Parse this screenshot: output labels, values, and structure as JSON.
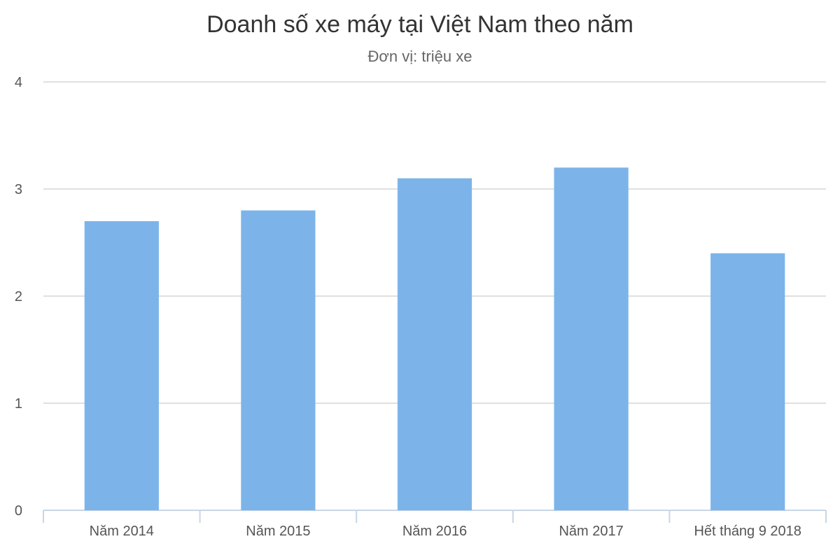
{
  "chart_data": {
    "type": "bar",
    "title": "Doanh số xe máy tại Việt Nam theo năm",
    "subtitle": "Đơn vị: triệu xe",
    "categories": [
      "Năm 2014",
      "Năm 2015",
      "Năm 2016",
      "Năm 2017",
      "Hết tháng 9 2018"
    ],
    "values": [
      2.7,
      2.8,
      3.1,
      3.2,
      2.4
    ],
    "ylim": [
      0,
      4
    ],
    "yticks": [
      0,
      1,
      2,
      3,
      4
    ],
    "xlabel": "",
    "ylabel": "",
    "grid": true,
    "legend": "none",
    "colors": {
      "bar": "#7cb4ea",
      "grid": "#e0e0e0",
      "axis": "#c8d6e6",
      "text": "#555555"
    }
  }
}
